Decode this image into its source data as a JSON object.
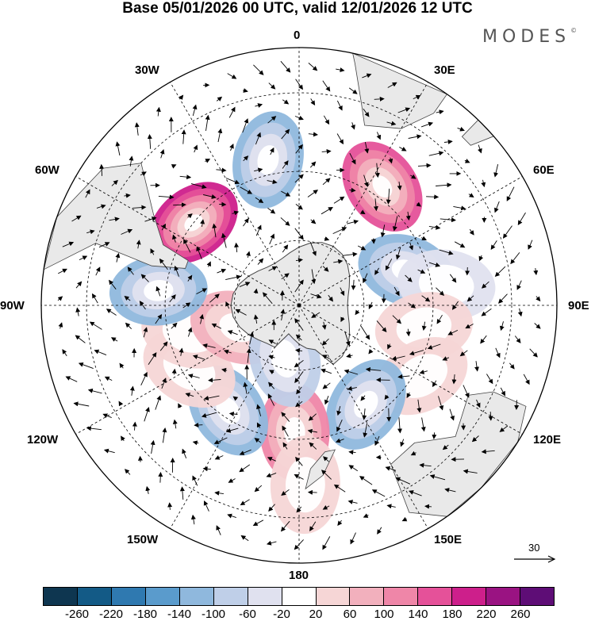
{
  "header": {
    "title": "Base 05/01/2026 00 UTC, valid 12/01/2026 12 UTC",
    "brand": "MODES",
    "brand_mark": "©"
  },
  "map": {
    "projection": "south-polar-stereographic",
    "longitude_labels": {
      "lon_0": "0",
      "lon_30e": "30E",
      "lon_60e": "60E",
      "lon_90e": "90E",
      "lon_120e": "120E",
      "lon_150e": "150E",
      "lon_180": "180",
      "lon_150w": "150W",
      "lon_120w": "120W",
      "lon_90w": "90W",
      "lon_60w": "60W",
      "lon_30w": "30W"
    },
    "reference_vector": {
      "label": "30"
    },
    "anomaly_centers": [
      {
        "lon": -52,
        "lat": -50,
        "value": 190
      },
      {
        "lon": -12,
        "lat": -46,
        "value": -140
      },
      {
        "lon": 35,
        "lat": -47,
        "value": 180
      },
      {
        "lon": 72,
        "lat": -56,
        "value": -110
      },
      {
        "lon": 82,
        "lat": -46,
        "value": -60
      },
      {
        "lon": 100,
        "lat": -52,
        "value": 60
      },
      {
        "lon": 120,
        "lat": -48,
        "value": 60
      },
      {
        "lon": 146,
        "lat": -54,
        "value": -140
      },
      {
        "lon": 182,
        "lat": -52,
        "value": 120
      },
      {
        "lon": 214,
        "lat": -52,
        "value": -120
      },
      {
        "lon": 240,
        "lat": -52,
        "value": 60
      },
      {
        "lon": 256,
        "lat": -56,
        "value": 60
      },
      {
        "lon": 250,
        "lat": -70,
        "value": 100
      },
      {
        "lon": 195,
        "lat": -73,
        "value": -80
      },
      {
        "lon": 276,
        "lat": -48,
        "value": -120
      },
      {
        "lon": 178,
        "lat": -38,
        "value": 40
      }
    ],
    "colors": {
      "land": "#e9e9e9",
      "coast": "#444444"
    }
  },
  "colorbar": {
    "colors": [
      "#0e3650",
      "#135a86",
      "#2f79b0",
      "#5a9bcc",
      "#8fb8dd",
      "#bfcfe8",
      "#e0e1ef",
      "#ffffff",
      "#f6d6d6",
      "#f2b0bd",
      "#ef86a8",
      "#e55199",
      "#cd1f8b",
      "#9a1382",
      "#5e0d76"
    ],
    "ticks": [
      "-260",
      "-220",
      "-180",
      "-140",
      "-100",
      "-60",
      "-20",
      "20",
      "60",
      "100",
      "140",
      "180",
      "220",
      "260"
    ]
  }
}
